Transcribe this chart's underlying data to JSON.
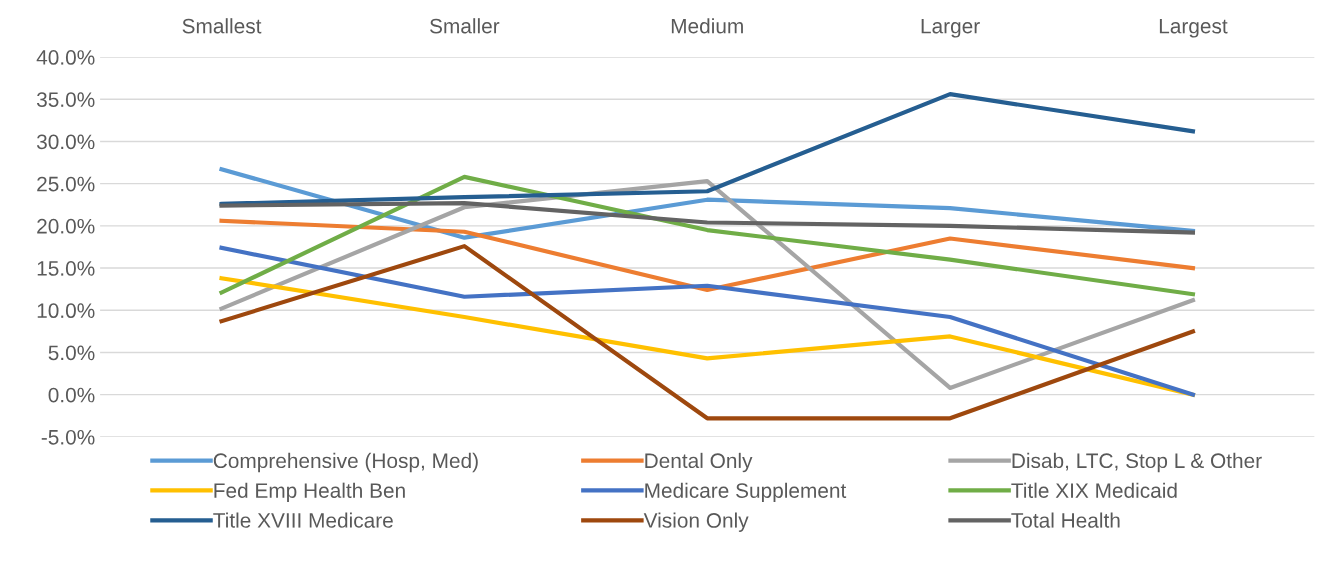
{
  "chart_data": {
    "type": "line",
    "categories": [
      "Smallest",
      "Smaller",
      "Medium",
      "Larger",
      "Largest"
    ],
    "ylim": [
      -5,
      40
    ],
    "yticks": [
      {
        "value": -5,
        "label": "-5.0%"
      },
      {
        "value": 0,
        "label": "0.0%"
      },
      {
        "value": 5,
        "label": "5.0%"
      },
      {
        "value": 10,
        "label": "10.0%"
      },
      {
        "value": 15,
        "label": "15.0%"
      },
      {
        "value": 20,
        "label": "20.0%"
      },
      {
        "value": 25,
        "label": "25.0%"
      },
      {
        "value": 30,
        "label": "30.0%"
      },
      {
        "value": 35,
        "label": "35.0%"
      },
      {
        "value": 40,
        "label": "40.0%"
      }
    ],
    "grid": "y",
    "legend": "bottom",
    "marker": "none",
    "line_style": "solid",
    "series": [
      {
        "name": "Comprehensive (Hosp, Med)",
        "color": "#5b9bd5",
        "values": [
          26.7,
          18.6,
          23.1,
          22.1,
          19.4
        ]
      },
      {
        "name": "Dental Only",
        "color": "#ed7d31",
        "values": [
          20.6,
          19.3,
          12.4,
          18.5,
          15.0
        ]
      },
      {
        "name": "Disab, LTC, Stop L & Other",
        "color": "#a5a5a5",
        "values": [
          10.2,
          22.2,
          25.3,
          0.8,
          11.2
        ]
      },
      {
        "name": "Fed Emp Health Ben",
        "color": "#ffc000",
        "values": [
          13.8,
          9.2,
          4.3,
          6.9,
          0.0
        ]
      },
      {
        "name": "Medicare Supplement",
        "color": "#4472c4",
        "values": [
          17.4,
          11.6,
          12.9,
          9.2,
          0.0
        ]
      },
      {
        "name": "Title XIX Medicaid",
        "color": "#70ad47",
        "values": [
          12.1,
          25.8,
          19.5,
          16.0,
          11.9
        ]
      },
      {
        "name": "Title XVIII Medicare",
        "color": "#255e91",
        "values": [
          22.6,
          23.4,
          24.1,
          35.6,
          31.2
        ]
      },
      {
        "name": "Vision Only",
        "color": "#9e480e",
        "values": [
          8.7,
          17.6,
          -2.8,
          -2.8,
          7.5
        ]
      },
      {
        "name": "Total Health",
        "color": "#636363",
        "values": [
          22.4,
          22.7,
          20.4,
          20.0,
          19.2
        ]
      }
    ]
  }
}
